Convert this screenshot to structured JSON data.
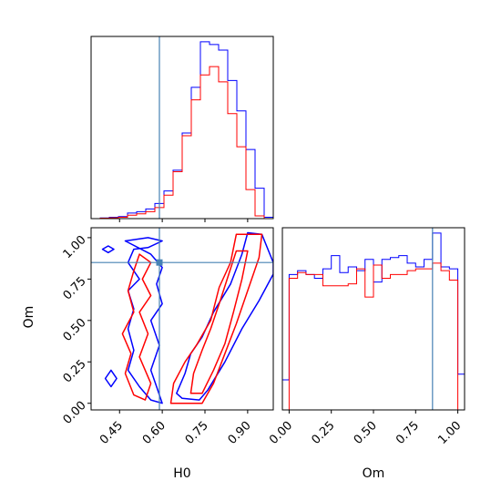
{
  "chart_data": {
    "type": "corner",
    "parameters": [
      "H0",
      "Om"
    ],
    "truth": {
      "H0": 0.59,
      "Om": 0.85
    },
    "colors": {
      "series_a": "#0000ff",
      "series_b": "#ff0000",
      "truth": "#4682b4"
    },
    "panels": [
      {
        "name": "H0-marginal",
        "type": "step-histogram",
        "xlim": [
          0.35,
          0.99
        ],
        "xticks": [
          0.45,
          0.6,
          0.75,
          0.9
        ],
        "series": [
          {
            "color": "blue",
            "bin_edges": [
              0.35,
              0.382,
              0.414,
              0.446,
              0.478,
              0.51,
              0.542,
              0.574,
              0.606,
              0.638,
              0.67,
              0.702,
              0.734,
              0.766,
              0.798,
              0.83,
              0.862,
              0.894,
              0.926,
              0.958,
              0.99
            ],
            "values": [
              0.0,
              0.5,
              1,
              1.5,
              4,
              5,
              7,
              11,
              20,
              35,
              62,
              95,
              128,
              126,
              122,
              100,
              78,
              50,
              22,
              1
            ]
          },
          {
            "color": "red",
            "bin_edges": [
              0.35,
              0.382,
              0.414,
              0.446,
              0.478,
              0.51,
              0.542,
              0.574,
              0.606,
              0.638,
              0.67,
              0.702,
              0.734,
              0.766,
              0.798,
              0.83,
              0.862,
              0.894,
              0.926,
              0.958,
              0.99
            ],
            "values": [
              0.0,
              0.3,
              0.6,
              1,
              2.5,
              3.5,
              5,
              8,
              17,
              34,
              60,
              86,
              104,
              110,
              99,
              76,
              52,
              21,
              2,
              0
            ]
          }
        ]
      },
      {
        "name": "H0-Om-contours",
        "type": "contour",
        "xlabel": "H0",
        "ylabel": "Om",
        "xlim": [
          0.35,
          0.99
        ],
        "ylim": [
          -0.04,
          1.06
        ],
        "xticks": [
          0.45,
          0.6,
          0.75,
          0.9
        ],
        "yticks": [
          0.0,
          0.25,
          0.5,
          0.75,
          1.0
        ],
        "series": [
          {
            "color": "blue",
            "level": "outer",
            "points": [
              [
                0.47,
                0.98
              ],
              [
                0.55,
                1.0
              ],
              [
                0.6,
                0.98
              ],
              [
                0.55,
                0.94
              ],
              [
                0.5,
                0.93
              ],
              [
                0.48,
                0.85
              ],
              [
                0.52,
                0.75
              ],
              [
                0.48,
                0.68
              ],
              [
                0.5,
                0.57
              ],
              [
                0.48,
                0.45
              ],
              [
                0.5,
                0.32
              ],
              [
                0.48,
                0.2
              ],
              [
                0.52,
                0.1
              ],
              [
                0.56,
                0.02
              ],
              [
                0.6,
                0.0
              ],
              [
                0.58,
                0.1
              ],
              [
                0.56,
                0.2
              ],
              [
                0.59,
                0.35
              ],
              [
                0.56,
                0.5
              ],
              [
                0.6,
                0.6
              ],
              [
                0.58,
                0.72
              ],
              [
                0.6,
                0.82
              ],
              [
                0.56,
                0.9
              ],
              [
                0.47,
                0.98
              ]
            ]
          },
          {
            "color": "blue",
            "level": "outer",
            "points": [
              [
                0.67,
                0.03
              ],
              [
                0.73,
                0.02
              ],
              [
                0.76,
                0.08
              ],
              [
                0.82,
                0.25
              ],
              [
                0.88,
                0.45
              ],
              [
                0.94,
                0.62
              ],
              [
                0.99,
                0.78
              ],
              [
                0.99,
                0.85
              ],
              [
                0.95,
                1.02
              ],
              [
                0.9,
                1.03
              ],
              [
                0.88,
                0.9
              ],
              [
                0.84,
                0.72
              ],
              [
                0.78,
                0.55
              ],
              [
                0.74,
                0.4
              ],
              [
                0.7,
                0.3
              ],
              [
                0.68,
                0.18
              ],
              [
                0.65,
                0.06
              ],
              [
                0.67,
                0.03
              ]
            ]
          },
          {
            "color": "blue",
            "level": "outer",
            "points": [
              [
                0.42,
                0.1
              ],
              [
                0.44,
                0.15
              ],
              [
                0.42,
                0.2
              ],
              [
                0.4,
                0.15
              ],
              [
                0.42,
                0.1
              ]
            ]
          },
          {
            "color": "blue",
            "level": "outer",
            "points": [
              [
                0.41,
                0.91
              ],
              [
                0.43,
                0.93
              ],
              [
                0.41,
                0.95
              ],
              [
                0.39,
                0.93
              ],
              [
                0.41,
                0.91
              ]
            ]
          },
          {
            "color": "red",
            "level": "outer",
            "points": [
              [
                0.5,
                0.05
              ],
              [
                0.54,
                0.02
              ],
              [
                0.56,
                0.12
              ],
              [
                0.52,
                0.28
              ],
              [
                0.55,
                0.42
              ],
              [
                0.52,
                0.55
              ],
              [
                0.56,
                0.65
              ],
              [
                0.53,
                0.75
              ],
              [
                0.56,
                0.85
              ],
              [
                0.52,
                0.9
              ],
              [
                0.5,
                0.8
              ],
              [
                0.48,
                0.68
              ],
              [
                0.5,
                0.55
              ],
              [
                0.46,
                0.42
              ],
              [
                0.49,
                0.3
              ],
              [
                0.47,
                0.18
              ],
              [
                0.5,
                0.05
              ]
            ]
          },
          {
            "color": "red",
            "level": "outer",
            "points": [
              [
                0.63,
                0.0
              ],
              [
                0.74,
                0.0
              ],
              [
                0.78,
                0.12
              ],
              [
                0.82,
                0.3
              ],
              [
                0.86,
                0.48
              ],
              [
                0.9,
                0.68
              ],
              [
                0.94,
                0.88
              ],
              [
                0.95,
                1.02
              ],
              [
                0.86,
                1.02
              ],
              [
                0.84,
                0.85
              ],
              [
                0.8,
                0.7
              ],
              [
                0.77,
                0.5
              ],
              [
                0.72,
                0.35
              ],
              [
                0.68,
                0.25
              ],
              [
                0.64,
                0.12
              ],
              [
                0.63,
                0.0
              ]
            ]
          },
          {
            "color": "red",
            "level": "inner",
            "points": [
              [
                0.7,
                0.06
              ],
              [
                0.74,
                0.06
              ],
              [
                0.78,
                0.2
              ],
              [
                0.82,
                0.36
              ],
              [
                0.85,
                0.55
              ],
              [
                0.88,
                0.75
              ],
              [
                0.9,
                0.92
              ],
              [
                0.86,
                0.92
              ],
              [
                0.83,
                0.76
              ],
              [
                0.8,
                0.6
              ],
              [
                0.77,
                0.45
              ],
              [
                0.74,
                0.32
              ],
              [
                0.71,
                0.18
              ],
              [
                0.7,
                0.06
              ]
            ]
          }
        ]
      },
      {
        "name": "Om-marginal",
        "type": "step-histogram",
        "xlabel": "Om",
        "xlim": [
          -0.04,
          1.04
        ],
        "xticks": [
          0.0,
          0.25,
          0.5,
          0.75,
          1.0
        ],
        "series": [
          {
            "color": "blue",
            "bin_edges": [
              -0.04,
              0.0,
              0.05,
              0.1,
              0.15,
              0.2,
              0.25,
              0.3,
              0.35,
              0.4,
              0.45,
              0.5,
              0.55,
              0.6,
              0.65,
              0.7,
              0.75,
              0.8,
              0.85,
              0.9,
              0.95,
              1.0,
              1.04
            ],
            "values": [
              0.16,
              0.72,
              0.74,
              0.72,
              0.7,
              0.75,
              0.82,
              0.73,
              0.76,
              0.74,
              0.8,
              0.68,
              0.8,
              0.81,
              0.82,
              0.78,
              0.76,
              0.8,
              0.94,
              0.76,
              0.75,
              0.19
            ]
          },
          {
            "color": "red",
            "bin_edges": [
              -0.04,
              0.0,
              0.05,
              0.1,
              0.15,
              0.2,
              0.25,
              0.3,
              0.35,
              0.4,
              0.45,
              0.5,
              0.55,
              0.6,
              0.65,
              0.7,
              0.75,
              0.8,
              0.85,
              0.9,
              0.95,
              1.0,
              1.04
            ],
            "values": [
              0.0,
              0.7,
              0.73,
              0.72,
              0.72,
              0.66,
              0.66,
              0.66,
              0.67,
              0.75,
              0.6,
              0.77,
              0.7,
              0.72,
              0.72,
              0.74,
              0.75,
              0.75,
              0.78,
              0.74,
              0.69,
              0.0
            ]
          }
        ]
      }
    ]
  }
}
